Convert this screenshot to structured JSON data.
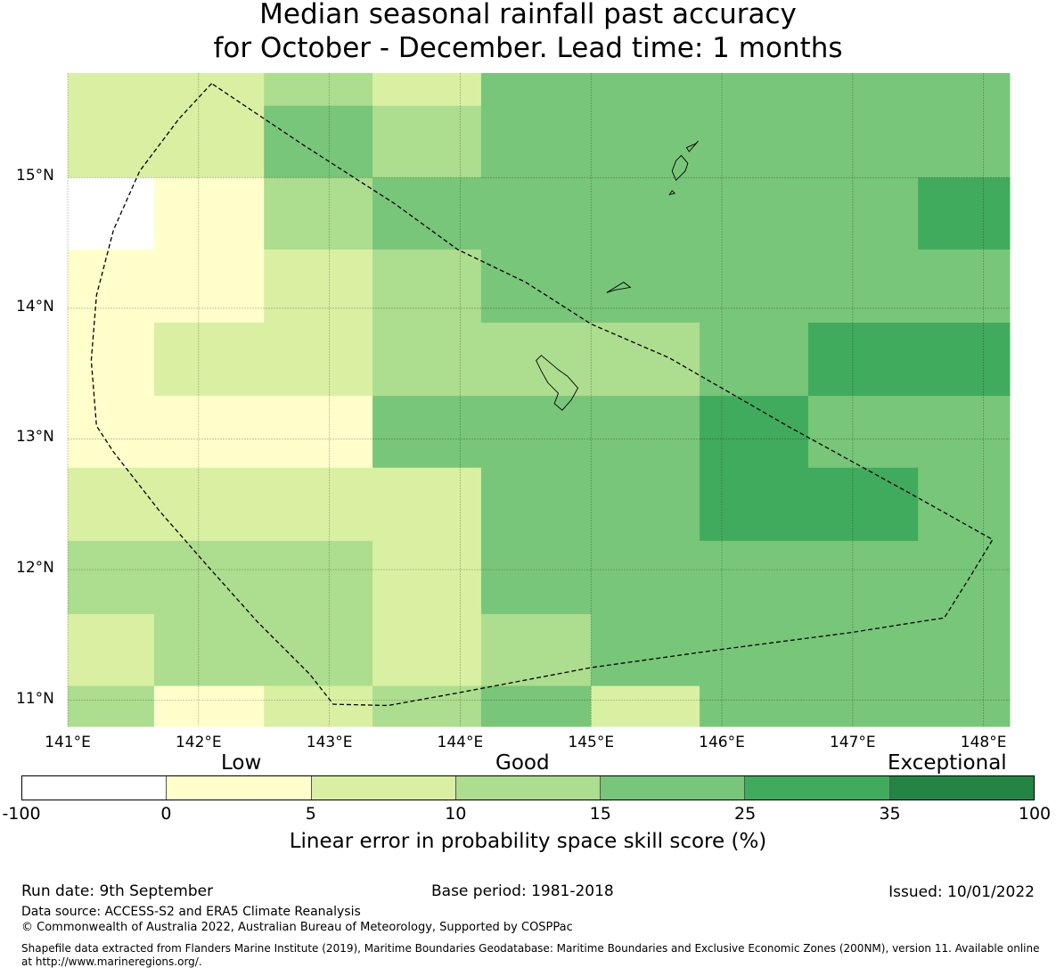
{
  "title_line1": "Median seasonal rainfall past accuracy",
  "title_line2": "for October - December. Lead time: 1 months",
  "chart_data": {
    "type": "heatmap",
    "x_axis": {
      "ticks": [
        141,
        142,
        143,
        144,
        145,
        146,
        147,
        148
      ],
      "tick_labels": [
        "141°E",
        "142°E",
        "143°E",
        "144°E",
        "145°E",
        "146°E",
        "147°E",
        "148°E"
      ]
    },
    "y_axis": {
      "ticks": [
        11,
        12,
        13,
        14,
        15
      ],
      "tick_labels": [
        "11°N",
        "12°N",
        "13°N",
        "14°N",
        "15°N"
      ]
    },
    "lon_range": [
      141.0,
      148.2
    ],
    "lat_range": [
      10.8,
      15.8
    ],
    "grid_lon_edges": [
      141.0,
      141.66,
      142.5,
      143.33,
      144.16,
      145.0,
      145.83,
      146.66,
      147.5,
      148.2
    ],
    "grid_lat_edges": [
      15.8,
      15.55,
      15.0,
      14.45,
      13.89,
      13.33,
      12.78,
      12.22,
      11.66,
      11.11,
      10.8
    ],
    "grid_category_index": [
      [
        2,
        2,
        3,
        2,
        4,
        4,
        4,
        4,
        4
      ],
      [
        2,
        2,
        4,
        3,
        4,
        4,
        4,
        4,
        4
      ],
      [
        0,
        1,
        3,
        4,
        4,
        4,
        4,
        4,
        5
      ],
      [
        1,
        1,
        2,
        3,
        4,
        4,
        4,
        4,
        4
      ],
      [
        1,
        2,
        2,
        3,
        3,
        3,
        4,
        5,
        5
      ],
      [
        1,
        1,
        1,
        4,
        4,
        4,
        5,
        4,
        4
      ],
      [
        2,
        2,
        2,
        2,
        4,
        4,
        5,
        5,
        4
      ],
      [
        3,
        3,
        3,
        2,
        4,
        4,
        4,
        4,
        4
      ],
      [
        2,
        3,
        3,
        2,
        3,
        4,
        4,
        4,
        4
      ],
      [
        3,
        1,
        2,
        3,
        4,
        2,
        4,
        4,
        4
      ]
    ],
    "eez_boundary": [
      [
        142.1,
        15.72
      ],
      [
        141.85,
        15.45
      ],
      [
        141.55,
        15.05
      ],
      [
        141.35,
        14.6
      ],
      [
        141.22,
        14.1
      ],
      [
        141.18,
        13.6
      ],
      [
        141.22,
        13.1
      ],
      [
        141.35,
        12.9
      ],
      [
        141.7,
        12.45
      ],
      [
        142.05,
        12.05
      ],
      [
        142.45,
        11.6
      ],
      [
        142.85,
        11.2
      ],
      [
        143.03,
        10.97
      ],
      [
        143.45,
        10.96
      ],
      [
        144.0,
        11.06
      ],
      [
        145.0,
        11.25
      ],
      [
        146.0,
        11.39
      ],
      [
        147.0,
        11.52
      ],
      [
        147.5,
        11.6
      ],
      [
        147.7,
        11.63
      ],
      [
        147.9,
        11.95
      ],
      [
        148.07,
        12.23
      ],
      [
        147.5,
        12.55
      ],
      [
        146.5,
        13.1
      ],
      [
        145.6,
        13.62
      ],
      [
        145.0,
        13.88
      ],
      [
        144.5,
        14.2
      ],
      [
        143.98,
        14.45
      ],
      [
        143.5,
        14.8
      ],
      [
        142.8,
        15.25
      ],
      [
        142.1,
        15.72
      ]
    ],
    "islands": [
      [
        [
          144.62,
          13.64
        ],
        [
          144.75,
          13.53
        ],
        [
          144.82,
          13.48
        ],
        [
          144.9,
          13.39
        ],
        [
          144.85,
          13.3
        ],
        [
          144.78,
          13.22
        ],
        [
          144.72,
          13.27
        ],
        [
          144.75,
          13.35
        ],
        [
          144.67,
          13.43
        ],
        [
          144.62,
          13.52
        ],
        [
          144.58,
          13.6
        ]
      ],
      [
        [
          145.65,
          14.98
        ],
        [
          145.72,
          15.05
        ],
        [
          145.74,
          15.11
        ],
        [
          145.69,
          15.17
        ],
        [
          145.65,
          15.13
        ],
        [
          145.62,
          15.05
        ]
      ],
      [
        [
          145.73,
          15.23
        ],
        [
          145.8,
          15.26
        ],
        [
          145.82,
          15.28
        ],
        [
          145.75,
          15.2
        ]
      ],
      [
        [
          145.6,
          14.87
        ],
        [
          145.64,
          14.88
        ],
        [
          145.62,
          14.9
        ]
      ],
      [
        [
          145.12,
          14.12
        ],
        [
          145.25,
          14.2
        ],
        [
          145.3,
          14.16
        ],
        [
          145.18,
          14.14
        ]
      ]
    ]
  },
  "colorbar": {
    "category_labels": [
      "Low",
      "Good",
      "Exceptional"
    ],
    "tick_labels": [
      "-100",
      "0",
      "5",
      "10",
      "15",
      "25",
      "35",
      "100"
    ],
    "colors": [
      "#ffffff",
      "#ffffcc",
      "#d9f0a3",
      "#addd8e",
      "#78c679",
      "#41ab5d",
      "#238443"
    ],
    "title": "Linear error in probability space skill score (%)"
  },
  "footer": {
    "run_date": "Run date: 9th September",
    "base_period": "Base period: 1981-2018",
    "issued": "Issued: 10/01/2022",
    "data_source": "Data source: ACCESS-S2 and ERA5 Climate Reanalysis",
    "copyright": "© Commonwealth of Australia 2022, Australian Bureau of Meteorology, Supported by COSPPac",
    "shapefile": "Shapefile data extracted from Flanders Marine Institute (2019), Maritime Boundaries Geodatabase: Maritime Boundaries and Exclusive Economic Zones (200NM), version 11. Available online at http://www.marineregions.org/."
  }
}
